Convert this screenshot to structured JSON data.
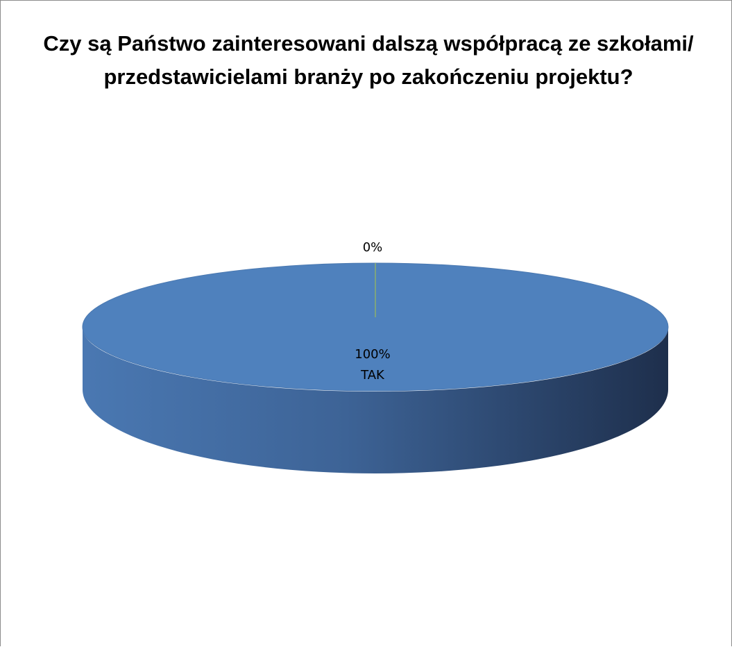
{
  "chart_data": {
    "type": "pie",
    "title": "Czy są Państwo zainteresowani dalszą współpracą ze szkołami/ przedstawicielami branży po zakończeniu projektu?",
    "slices": [
      {
        "category": "TAK",
        "value": 100,
        "label": "100%",
        "color": "#4F81BD"
      },
      {
        "value": 0,
        "label": "0%",
        "color": "#9BBB59"
      }
    ],
    "style": "3d"
  }
}
